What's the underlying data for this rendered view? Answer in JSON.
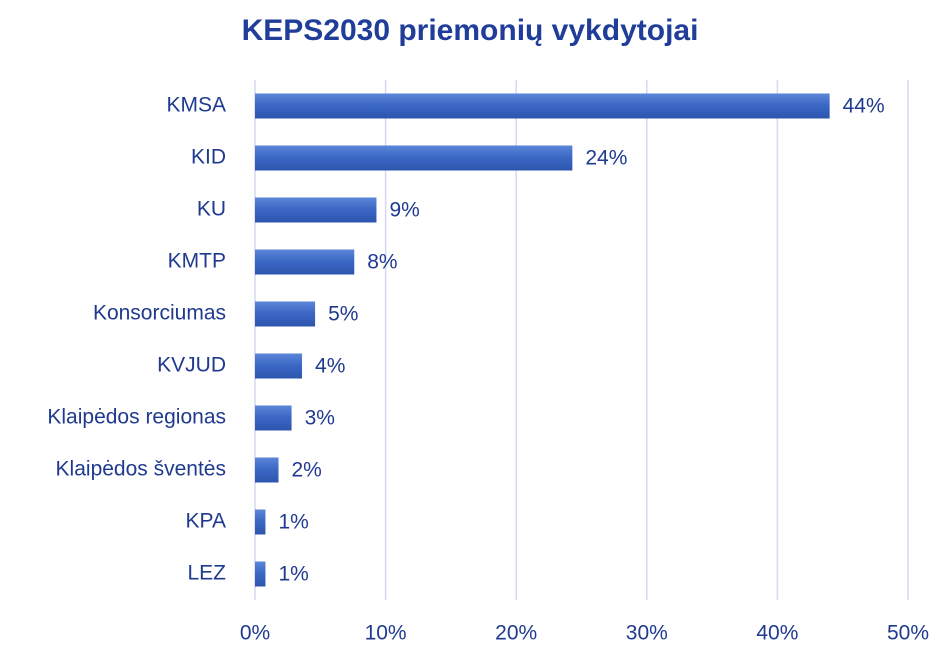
{
  "chart_data": {
    "type": "bar",
    "orientation": "horizontal",
    "title": "KEPS2030 priemonių vykdytojai",
    "categories": [
      "KMSA",
      "KID",
      "KU",
      "KMTP",
      "Konsorciumas",
      "KVJUD",
      "Klaipėdos regionas",
      "Klaipėdos šventės",
      "KPA",
      "LEZ"
    ],
    "values": [
      44,
      24.3,
      9.3,
      7.6,
      4.6,
      3.6,
      2.8,
      1.8,
      0.8,
      0.8
    ],
    "value_labels": [
      "44%",
      "24%",
      "9%",
      "8%",
      "5%",
      "4%",
      "3%",
      "2%",
      "1%",
      "1%"
    ],
    "color": "#3a66c4",
    "xlim": [
      0,
      50
    ],
    "xticks": [
      {
        "value": 0,
        "label": "0%"
      },
      {
        "value": 10,
        "label": "10%"
      },
      {
        "value": 20,
        "label": "20%"
      },
      {
        "value": 30,
        "label": "30%"
      },
      {
        "value": 40,
        "label": "40%"
      },
      {
        "value": 50,
        "label": "50%"
      }
    ],
    "grid": true
  }
}
